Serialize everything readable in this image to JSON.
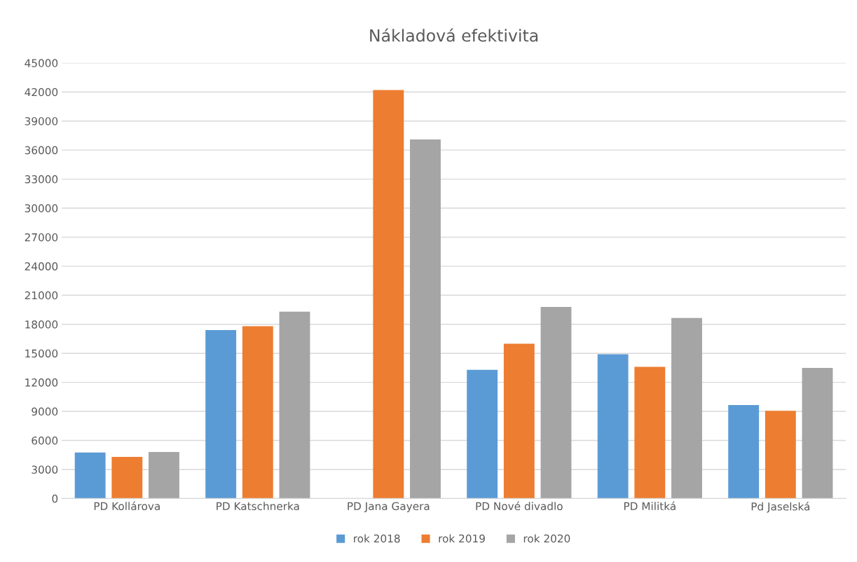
{
  "chart_data": {
    "type": "bar",
    "title": "Nákladová efektivita",
    "categories": [
      "PD Kollárova",
      "PD Katschnerka",
      "PD Jana Gayera",
      "PD Nové divadlo",
      "PD Militká",
      "Pd Jaselská"
    ],
    "series": [
      {
        "name": "rok 2018",
        "color": "#5b9bd5",
        "values": [
          4750,
          17400,
          null,
          13300,
          14900,
          9650
        ]
      },
      {
        "name": "rok 2019",
        "color": "#ed7d31",
        "values": [
          4300,
          17800,
          42200,
          16000,
          13600,
          9050
        ]
      },
      {
        "name": "rok 2020",
        "color": "#a5a5a5",
        "values": [
          4800,
          19300,
          37100,
          19800,
          18650,
          13500
        ]
      }
    ],
    "ylim": [
      0,
      45000
    ],
    "yticks": [
      0,
      3000,
      6000,
      9000,
      12000,
      15000,
      18000,
      21000,
      24000,
      27000,
      30000,
      33000,
      36000,
      39000,
      42000,
      45000
    ],
    "grid": "y",
    "legend": "bottom"
  }
}
